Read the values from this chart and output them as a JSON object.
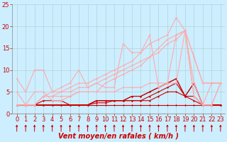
{
  "title": "",
  "xlabel": "Vent moyen/en rafales ( km/h )",
  "background_color": "#cceeff",
  "grid_color": "#aacccc",
  "xlim": [
    -0.5,
    23.5
  ],
  "ylim": [
    0,
    25
  ],
  "yticks": [
    0,
    5,
    10,
    15,
    20,
    25
  ],
  "xticks": [
    0,
    1,
    2,
    3,
    4,
    5,
    6,
    7,
    8,
    9,
    10,
    11,
    12,
    13,
    14,
    15,
    16,
    17,
    18,
    19,
    20,
    21,
    22,
    23
  ],
  "series": [
    {
      "x": [
        0,
        1,
        2,
        3,
        4,
        5,
        6,
        7,
        8,
        9,
        10,
        11,
        12,
        13,
        14,
        15,
        16,
        17,
        18,
        19,
        20,
        21,
        22,
        23
      ],
      "y": [
        2,
        2,
        2,
        2,
        2,
        2,
        2,
        2,
        2,
        2,
        2,
        2,
        2,
        2,
        2,
        2,
        2,
        2,
        2,
        2,
        2,
        2,
        2,
        2
      ],
      "color": "#cc0000",
      "lw": 0.8,
      "marker": "D",
      "ms": 1.5
    },
    {
      "x": [
        0,
        1,
        2,
        3,
        4,
        5,
        6,
        7,
        8,
        9,
        10,
        11,
        12,
        13,
        14,
        15,
        16,
        17,
        18,
        19,
        20,
        21,
        22,
        23
      ],
      "y": [
        2,
        2,
        2,
        2,
        2,
        2,
        2,
        2,
        2,
        2.5,
        2.5,
        3,
        3,
        3,
        3,
        3,
        4,
        5,
        5,
        4,
        3,
        2,
        2,
        2
      ],
      "color": "#cc0000",
      "lw": 0.8,
      "marker": "D",
      "ms": 1.5
    },
    {
      "x": [
        0,
        1,
        2,
        3,
        4,
        5,
        6,
        7,
        8,
        9,
        10,
        11,
        12,
        13,
        14,
        15,
        16,
        17,
        18,
        19,
        20,
        21,
        22,
        23
      ],
      "y": [
        2,
        2,
        2,
        2,
        2,
        2,
        2,
        2,
        2,
        3,
        3,
        3,
        3,
        3,
        3,
        4,
        5,
        6,
        7,
        4,
        4,
        2,
        2,
        2
      ],
      "color": "#cc0000",
      "lw": 0.8,
      "marker": "D",
      "ms": 1.5
    },
    {
      "x": [
        0,
        1,
        2,
        3,
        4,
        5,
        6,
        7,
        8,
        9,
        10,
        11,
        12,
        13,
        14,
        15,
        16,
        17,
        18,
        19,
        20,
        21,
        22,
        23
      ],
      "y": [
        2,
        2,
        2,
        2,
        2,
        2,
        2,
        2,
        2,
        3,
        3,
        3,
        3,
        4,
        4,
        5,
        6,
        7,
        8,
        4,
        7,
        2,
        2,
        2
      ],
      "color": "#cc0000",
      "lw": 0.8,
      "marker": "D",
      "ms": 1.5
    },
    {
      "x": [
        0,
        1,
        2,
        3,
        4,
        5,
        6,
        7,
        8,
        9,
        10,
        11,
        12,
        13,
        14,
        15,
        16,
        17,
        18,
        19,
        20,
        21,
        22,
        23
      ],
      "y": [
        2,
        2,
        2,
        3,
        3,
        3,
        2,
        2,
        2,
        3,
        3,
        3,
        3,
        4,
        4,
        5,
        6,
        7,
        8,
        4,
        7,
        2,
        2,
        2
      ],
      "color": "#cc0000",
      "lw": 0.8,
      "marker": "D",
      "ms": 1.5
    },
    {
      "x": [
        0,
        1,
        2,
        3,
        4,
        5,
        6,
        7,
        8,
        9,
        10,
        11,
        12,
        13,
        14,
        15,
        16,
        17,
        18,
        19,
        20,
        21,
        22,
        23
      ],
      "y": [
        8,
        5,
        10,
        10,
        5,
        6,
        7,
        10,
        6,
        7,
        6,
        6,
        16,
        14,
        14,
        18,
        6,
        7,
        7,
        19,
        7,
        2,
        7,
        7
      ],
      "color": "#ffaaaa",
      "lw": 0.8,
      "marker": "D",
      "ms": 1.5
    },
    {
      "x": [
        0,
        1,
        2,
        3,
        4,
        5,
        6,
        7,
        8,
        9,
        10,
        11,
        12,
        13,
        14,
        15,
        16,
        17,
        18,
        19,
        20,
        21,
        22,
        23
      ],
      "y": [
        5,
        2,
        5,
        5,
        3,
        3,
        4,
        5,
        5,
        5,
        5,
        5,
        6,
        6,
        6,
        7,
        7,
        7,
        18,
        19,
        4,
        2,
        2,
        7
      ],
      "color": "#ffaaaa",
      "lw": 0.8,
      "marker": "D",
      "ms": 1.5
    },
    {
      "x": [
        0,
        1,
        2,
        3,
        4,
        5,
        6,
        7,
        8,
        9,
        10,
        11,
        12,
        13,
        14,
        15,
        16,
        17,
        18,
        19,
        20,
        21,
        22,
        23
      ],
      "y": [
        2,
        2,
        2,
        4,
        4,
        4,
        4,
        5,
        5,
        5,
        7,
        8,
        9,
        10,
        11,
        13,
        15,
        17,
        18,
        19,
        13,
        7,
        7,
        7
      ],
      "color": "#ffaaaa",
      "lw": 0.8,
      "marker": "D",
      "ms": 1.5
    },
    {
      "x": [
        0,
        1,
        2,
        3,
        4,
        5,
        6,
        7,
        8,
        9,
        10,
        11,
        12,
        13,
        14,
        15,
        16,
        17,
        18,
        19,
        20,
        21,
        22,
        23
      ],
      "y": [
        2,
        2,
        2,
        4,
        4,
        5,
        5,
        6,
        6,
        7,
        8,
        9,
        10,
        11,
        12,
        13,
        14,
        16,
        17,
        19,
        13,
        7,
        7,
        7
      ],
      "color": "#ffaaaa",
      "lw": 0.8,
      "marker": "D",
      "ms": 1.5
    },
    {
      "x": [
        0,
        1,
        2,
        3,
        4,
        5,
        6,
        7,
        8,
        9,
        10,
        11,
        12,
        13,
        14,
        15,
        16,
        17,
        18,
        19,
        20,
        21,
        22,
        23
      ],
      "y": [
        2,
        2,
        2,
        4,
        5,
        5,
        6,
        7,
        7,
        8,
        9,
        10,
        11,
        12,
        14,
        16,
        17,
        18,
        22,
        19,
        4,
        2,
        2,
        7
      ],
      "color": "#ffaaaa",
      "lw": 0.8,
      "marker": "D",
      "ms": 1.5
    }
  ],
  "arrow_color": "#cc0000",
  "xlabel_color": "#cc0000",
  "xlabel_fontsize": 7,
  "tick_fontsize": 6
}
